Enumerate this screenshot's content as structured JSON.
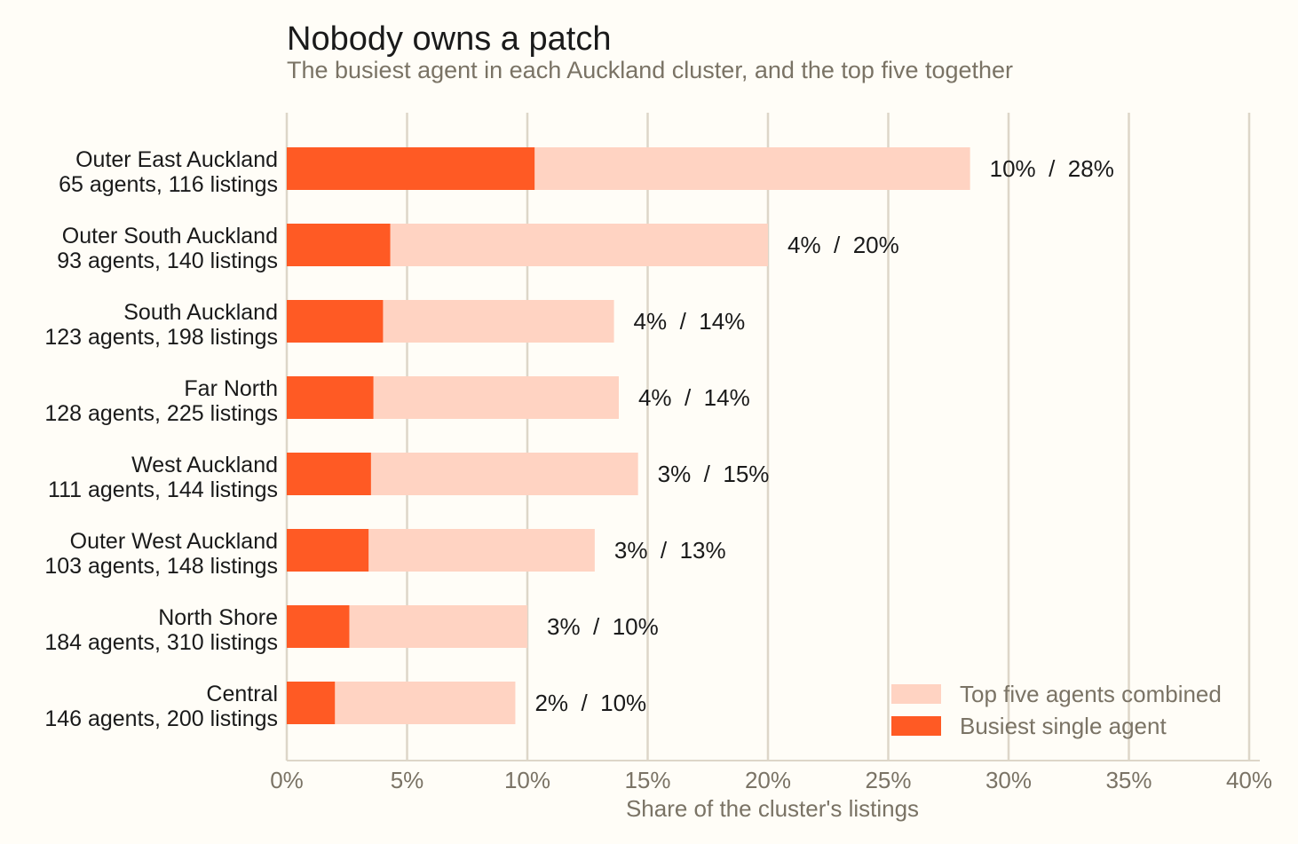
{
  "chart_data": {
    "type": "bar",
    "orientation": "horizontal",
    "stacked": false,
    "title": "Nobody owns a patch",
    "subtitle": "The busiest agent in each Auckland cluster, and the top five together",
    "xlabel": "Share of the cluster's listings",
    "xlim": [
      0,
      40
    ],
    "xticks": [
      0,
      5,
      10,
      15,
      20,
      25,
      30,
      35,
      40
    ],
    "tick_suffix": "%",
    "grid": "vertical",
    "legend_position": "bottom-right",
    "categories": [
      {
        "name": "Outer East Auckland",
        "detail": "65 agents, 116 listings"
      },
      {
        "name": "Outer South Auckland",
        "detail": "93 agents, 140 listings"
      },
      {
        "name": "South Auckland",
        "detail": "123 agents, 198 listings"
      },
      {
        "name": "Far North",
        "detail": "128 agents, 225 listings"
      },
      {
        "name": "West Auckland",
        "detail": "111 agents, 144 listings"
      },
      {
        "name": "Outer West Auckland",
        "detail": "103 agents, 148 listings"
      },
      {
        "name": "North Shore",
        "detail": "184 agents, 310 listings"
      },
      {
        "name": "Central",
        "detail": "146 agents, 200 listings"
      }
    ],
    "series": [
      {
        "name": "Top five agents combined",
        "color": "#ffd3c2",
        "values": [
          28.4,
          20.0,
          13.6,
          13.8,
          14.6,
          12.8,
          10.0,
          9.5
        ]
      },
      {
        "name": "Busiest single agent",
        "color": "#ff5a24",
        "values": [
          10.3,
          4.3,
          4.0,
          3.6,
          3.5,
          3.4,
          2.6,
          2.0
        ]
      }
    ],
    "value_labels": [
      "10%  /  28%",
      "4%  /  20%",
      "4%  /  14%",
      "4%  /  14%",
      "3%  /  15%",
      "3%  /  13%",
      "3%  /  10%",
      "2%  /  10%"
    ]
  }
}
